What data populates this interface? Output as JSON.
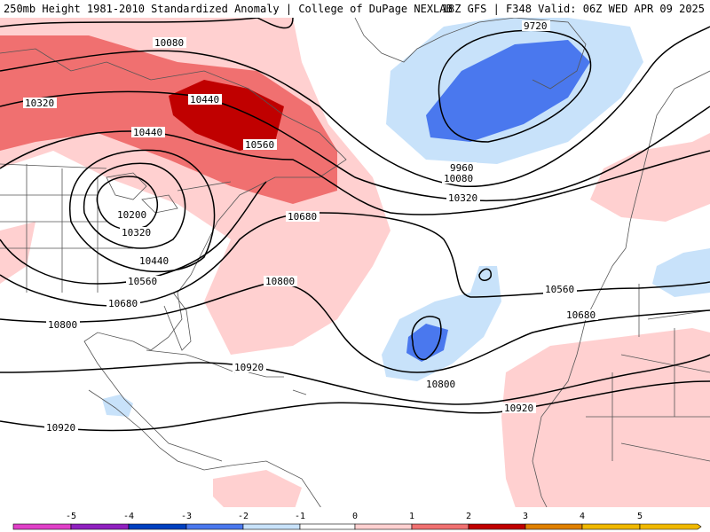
{
  "header": {
    "left": "250mb Height 1981-2010 Standardized Anomaly | College of DuPage NEXLAB",
    "right": "18Z GFS | F348 Valid: 06Z WED APR 09 2025"
  },
  "contours": {
    "labels": [
      "10080",
      "10320",
      "10440",
      "10440",
      "10560",
      "10200",
      "10320",
      "10440",
      "10560",
      "10680",
      "10800",
      "9720",
      "9960",
      "10080",
      "10320",
      "10680",
      "10800",
      "10560",
      "10680",
      "10800",
      "10920",
      "10920",
      "10920"
    ]
  },
  "colorbar": {
    "ticks": [
      "-5",
      "-4",
      "-3",
      "-2",
      "-1",
      "0",
      "1",
      "2",
      "3",
      "4",
      "5"
    ],
    "colors": [
      "#e040c8",
      "#9020c0",
      "#0040c0",
      "#4a78ee",
      "#c8e2fa",
      "#ffffff",
      "#ffd0d0",
      "#f07070",
      "#c00000",
      "#e08000",
      "#f0b800"
    ]
  }
}
